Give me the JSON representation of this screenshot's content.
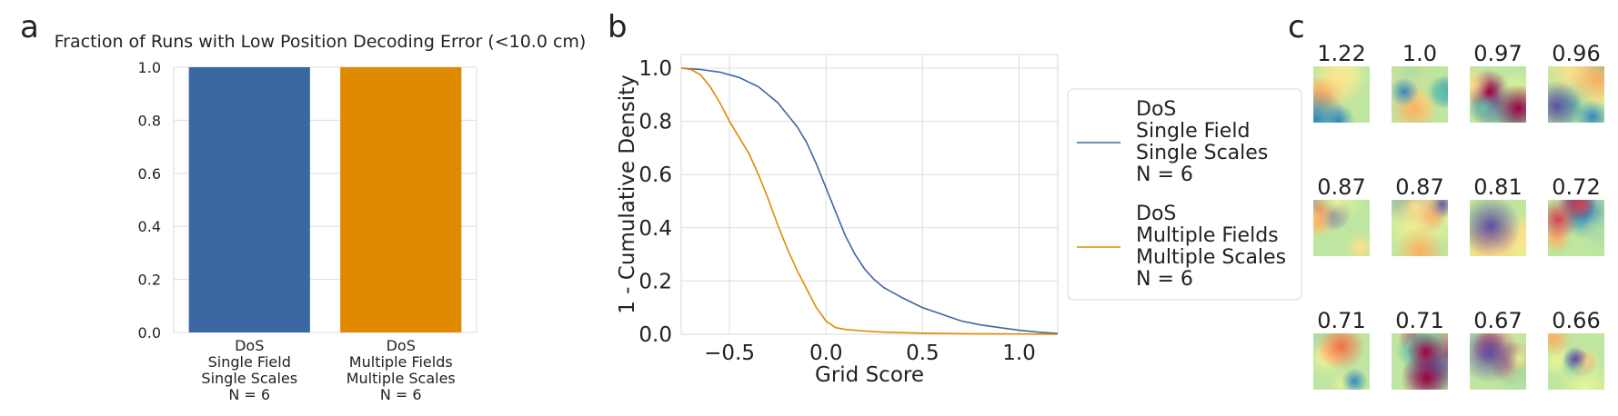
{
  "panel_labels": {
    "a": "a",
    "b": "b",
    "c": "c"
  },
  "colors": {
    "blue": "#3b67a3",
    "orange": "#e08a00",
    "grid": "#dddddd",
    "axis_frame": "#d9d9d9"
  },
  "chart_data": [
    {
      "panel": "a",
      "type": "bar",
      "title": "Fraction of Runs with Low Position Decoding Error (<10.0 cm)",
      "categories": [
        [
          "DoS",
          "Single Field",
          "Single Scales",
          "N = 6"
        ],
        [
          "DoS",
          "Multiple Fields",
          "Multiple Scales",
          "N = 6"
        ]
      ],
      "values": [
        1.0,
        1.0
      ],
      "bar_colors": [
        "#3b67a3",
        "#e08a00"
      ],
      "ylim": [
        0,
        1
      ],
      "yticks": [
        0.0,
        0.2,
        0.4,
        0.6,
        0.8,
        1.0
      ],
      "ytick_labels": [
        "0.0",
        "0.2",
        "0.4",
        "0.6",
        "0.8",
        "1.0"
      ],
      "grid": true
    },
    {
      "panel": "b",
      "type": "line",
      "xlabel": "Grid Score",
      "ylabel": "1 - Cumulative Density",
      "xlim": [
        -0.75,
        1.2
      ],
      "ylim": [
        0,
        1
      ],
      "xticks": [
        -0.5,
        0.0,
        0.5,
        1.0
      ],
      "xtick_labels": [
        "−0.5",
        "0.0",
        "0.5",
        "1.0"
      ],
      "yticks": [
        0.0,
        0.2,
        0.4,
        0.6,
        0.8,
        1.0
      ],
      "ytick_labels": [
        "0.0",
        "0.2",
        "0.4",
        "0.6",
        "0.8",
        "1.0"
      ],
      "grid": true,
      "legend_position": "right-outside",
      "series": [
        {
          "name": "DoS\nSingle Field\nSingle Scales\nN = 6",
          "color": "#3b67a3",
          "points": [
            [
              -0.75,
              1.0
            ],
            [
              -0.65,
              0.995
            ],
            [
              -0.55,
              0.985
            ],
            [
              -0.45,
              0.965
            ],
            [
              -0.35,
              0.93
            ],
            [
              -0.25,
              0.87
            ],
            [
              -0.15,
              0.78
            ],
            [
              -0.1,
              0.72
            ],
            [
              -0.05,
              0.64
            ],
            [
              0.0,
              0.55
            ],
            [
              0.05,
              0.46
            ],
            [
              0.1,
              0.37
            ],
            [
              0.15,
              0.3
            ],
            [
              0.2,
              0.245
            ],
            [
              0.25,
              0.205
            ],
            [
              0.3,
              0.175
            ],
            [
              0.4,
              0.135
            ],
            [
              0.5,
              0.1
            ],
            [
              0.6,
              0.075
            ],
            [
              0.7,
              0.05
            ],
            [
              0.8,
              0.035
            ],
            [
              0.9,
              0.025
            ],
            [
              1.0,
              0.015
            ],
            [
              1.1,
              0.008
            ],
            [
              1.2,
              0.003
            ]
          ]
        },
        {
          "name": "DoS\nMultiple Fields\nMultiple Scales\nN = 6",
          "color": "#e08a00",
          "points": [
            [
              -0.75,
              1.0
            ],
            [
              -0.7,
              0.995
            ],
            [
              -0.65,
              0.975
            ],
            [
              -0.6,
              0.93
            ],
            [
              -0.55,
              0.87
            ],
            [
              -0.5,
              0.8
            ],
            [
              -0.45,
              0.74
            ],
            [
              -0.4,
              0.68
            ],
            [
              -0.35,
              0.6
            ],
            [
              -0.3,
              0.51
            ],
            [
              -0.25,
              0.41
            ],
            [
              -0.2,
              0.32
            ],
            [
              -0.15,
              0.24
            ],
            [
              -0.1,
              0.17
            ],
            [
              -0.05,
              0.1
            ],
            [
              0.0,
              0.05
            ],
            [
              0.05,
              0.025
            ],
            [
              0.1,
              0.018
            ],
            [
              0.2,
              0.012
            ],
            [
              0.3,
              0.008
            ],
            [
              0.5,
              0.004
            ],
            [
              0.7,
              0.002
            ],
            [
              1.0,
              0.001
            ],
            [
              1.2,
              0.0
            ]
          ]
        }
      ]
    }
  ],
  "ratemaps": {
    "rows": [
      [
        "1.22",
        "1.0",
        "0.97",
        "0.96"
      ],
      [
        "0.87",
        "0.87",
        "0.81",
        "0.72"
      ],
      [
        "0.71",
        "0.71",
        "0.67",
        "0.66"
      ]
    ]
  }
}
